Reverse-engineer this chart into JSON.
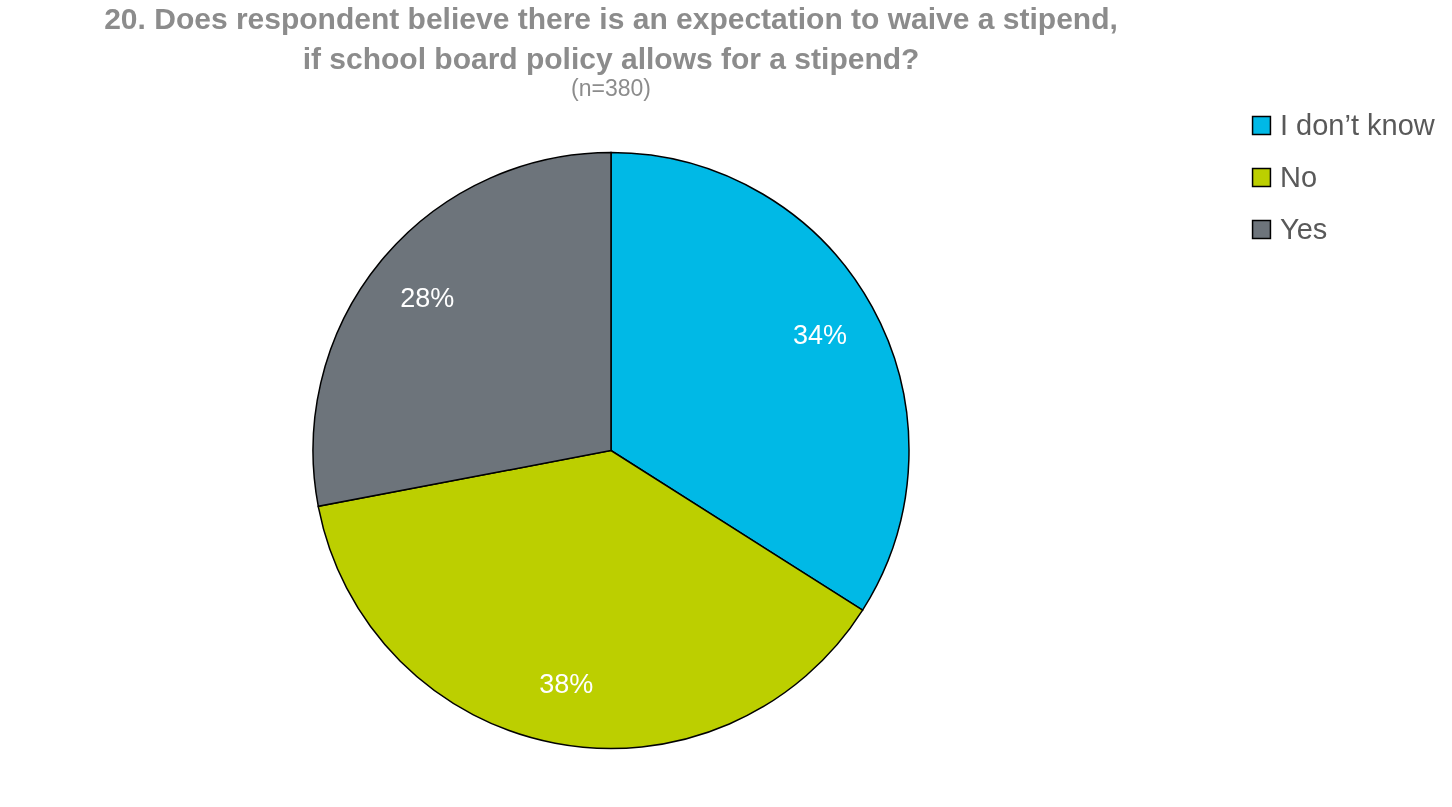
{
  "chart_data": {
    "type": "pie",
    "title": "20. Does respondent believe there is an expectation to waive a stipend, if school board policy allows for a stipend?",
    "subtitle": "(n=380)",
    "categories": [
      "I don’t know",
      "No",
      "Yes"
    ],
    "values": [
      34,
      38,
      28
    ],
    "value_labels": [
      "34%",
      "38%",
      "28%"
    ],
    "colors": [
      "#00b9e6",
      "#bccf00",
      "#6d747b"
    ],
    "legend": "right"
  }
}
